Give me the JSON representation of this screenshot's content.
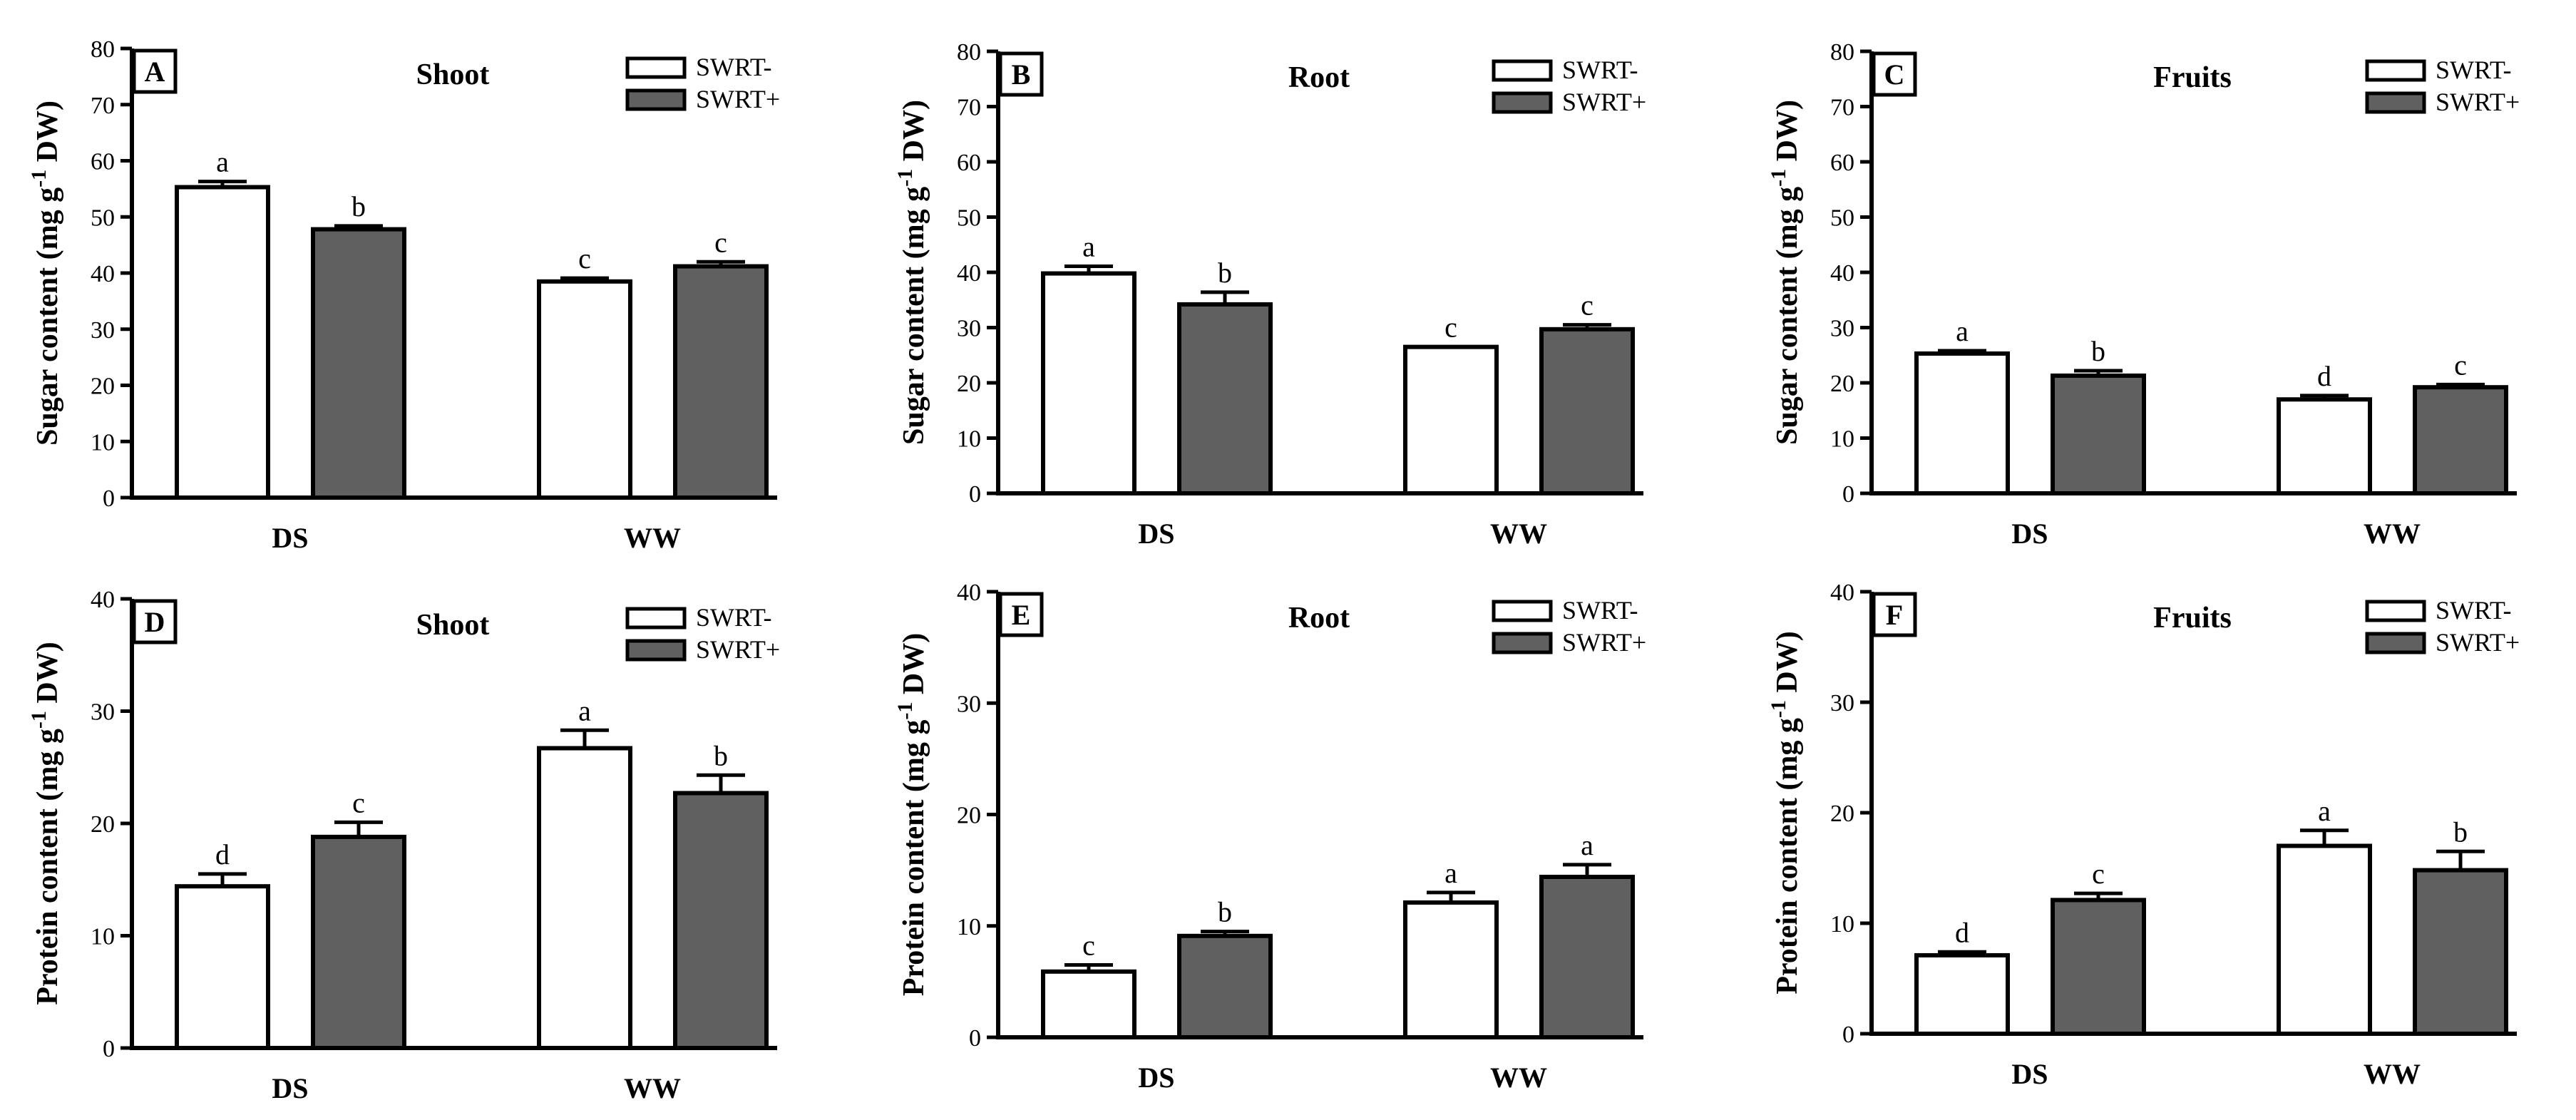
{
  "legend_colors": {
    "SWRT-": "#ffffff",
    "SWRT+": "#606060"
  },
  "chart_data": [
    {
      "type": "bar",
      "letter": "A",
      "title": "Shoot",
      "ylabel_main": "Sugar content (mg g",
      "ylabel_sup": "-1",
      "ylabel_tail": " DW)",
      "ylim": [
        0,
        80
      ],
      "yticks": [
        "0",
        "10",
        "20",
        "30",
        "40",
        "50",
        "60",
        "70",
        "80"
      ],
      "categories": [
        "DS",
        "WW"
      ],
      "grid": false,
      "legend_position": "top-right",
      "series": [
        {
          "name": "SWRT-",
          "values": [
            55.3,
            38.5
          ],
          "errors": [
            1.0,
            0.6
          ],
          "sig": [
            "a",
            "c"
          ]
        },
        {
          "name": "SWRT+",
          "values": [
            47.8,
            41.2
          ],
          "errors": [
            0.6,
            0.8
          ],
          "sig": [
            "b",
            "c"
          ]
        }
      ]
    },
    {
      "type": "bar",
      "letter": "B",
      "title": "Root",
      "ylabel_main": "Sugar content (mg g",
      "ylabel_sup": "-1",
      "ylabel_tail": " DW)",
      "ylim": [
        0,
        80
      ],
      "yticks": [
        "0",
        "10",
        "20",
        "30",
        "40",
        "50",
        "60",
        "70",
        "80"
      ],
      "categories": [
        "DS",
        "WW"
      ],
      "grid": false,
      "legend_position": "top-right",
      "series": [
        {
          "name": "SWRT-",
          "values": [
            39.8,
            26.5
          ],
          "errors": [
            1.3,
            0.0
          ],
          "sig": [
            "a",
            "c"
          ]
        },
        {
          "name": "SWRT+",
          "values": [
            34.2,
            29.7
          ],
          "errors": [
            2.2,
            0.8
          ],
          "sig": [
            "b",
            "c"
          ]
        }
      ]
    },
    {
      "type": "bar",
      "letter": "C",
      "title": "Fruits",
      "ylabel_main": "Sugar content (mg g",
      "ylabel_sup": "-1",
      "ylabel_tail": " DW)",
      "ylim": [
        0,
        80
      ],
      "yticks": [
        "0",
        "10",
        "20",
        "30",
        "40",
        "50",
        "60",
        "70",
        "80"
      ],
      "categories": [
        "DS",
        "WW"
      ],
      "grid": false,
      "legend_position": "top-right",
      "series": [
        {
          "name": "SWRT-",
          "values": [
            25.3,
            17.0
          ],
          "errors": [
            0.5,
            0.7
          ],
          "sig": [
            "a",
            "d"
          ]
        },
        {
          "name": "SWRT+",
          "values": [
            21.3,
            19.2
          ],
          "errors": [
            0.9,
            0.5
          ],
          "sig": [
            "b",
            "c"
          ]
        }
      ]
    },
    {
      "type": "bar",
      "letter": "D",
      "title": "Shoot",
      "ylabel_main": "Protein content  (mg g",
      "ylabel_sup": "-1",
      "ylabel_tail": " DW)",
      "ylim": [
        0,
        40
      ],
      "yticks": [
        "0",
        "10",
        "20",
        "30",
        "40"
      ],
      "categories": [
        "DS",
        "WW"
      ],
      "grid": false,
      "legend_position": "top-right",
      "series": [
        {
          "name": "SWRT-",
          "values": [
            14.4,
            26.7
          ],
          "errors": [
            1.1,
            1.6
          ],
          "sig": [
            "d",
            "a"
          ]
        },
        {
          "name": "SWRT+",
          "values": [
            18.8,
            22.7
          ],
          "errors": [
            1.3,
            1.6
          ],
          "sig": [
            "c",
            "b"
          ]
        }
      ]
    },
    {
      "type": "bar",
      "letter": "E",
      "title": "Root",
      "ylabel_main": "Protein content  (mg g",
      "ylabel_sup": "-1",
      "ylabel_tail": " DW)",
      "ylim": [
        0,
        40
      ],
      "yticks": [
        "0",
        "10",
        "20",
        "30",
        "40"
      ],
      "categories": [
        "DS",
        "WW"
      ],
      "grid": false,
      "legend_position": "top-right",
      "series": [
        {
          "name": "SWRT-",
          "values": [
            5.9,
            12.1
          ],
          "errors": [
            0.6,
            0.9
          ],
          "sig": [
            "c",
            "a"
          ]
        },
        {
          "name": "SWRT+",
          "values": [
            9.1,
            14.4
          ],
          "errors": [
            0.4,
            1.1
          ],
          "sig": [
            "b",
            "a"
          ]
        }
      ]
    },
    {
      "type": "bar",
      "letter": "F",
      "title": "Fruits",
      "ylabel_main": "Protein content  (mg g",
      "ylabel_sup": "-1",
      "ylabel_tail": " DW)",
      "ylim": [
        0,
        40
      ],
      "yticks": [
        "0",
        "10",
        "20",
        "30",
        "40"
      ],
      "categories": [
        "DS",
        "WW"
      ],
      "grid": false,
      "legend_position": "top-right",
      "series": [
        {
          "name": "SWRT-",
          "values": [
            7.1,
            17.0
          ],
          "errors": [
            0.3,
            1.4
          ],
          "sig": [
            "d",
            "a"
          ]
        },
        {
          "name": "SWRT+",
          "values": [
            12.1,
            14.8
          ],
          "errors": [
            0.6,
            1.7
          ],
          "sig": [
            "c",
            "b"
          ]
        }
      ]
    }
  ]
}
